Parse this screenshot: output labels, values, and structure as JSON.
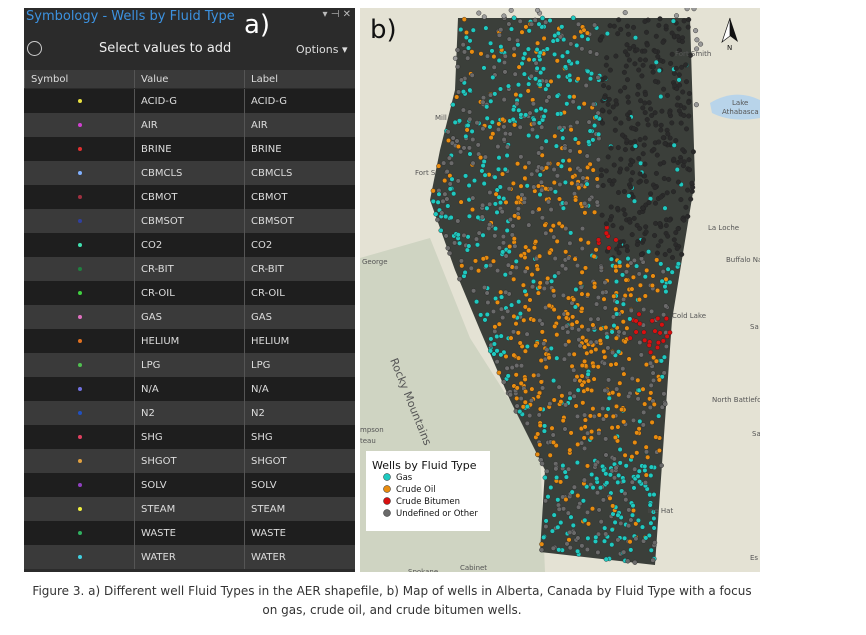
{
  "panel": {
    "title": "Symbology - Wells by Fluid Type",
    "label": "a)",
    "subheader": "Select values to add",
    "options": "Options",
    "columns": [
      "Symbol",
      "Value",
      "Label"
    ],
    "rows": [
      {
        "color": "#e8e040",
        "value": "ACID-G",
        "label": "ACID-G"
      },
      {
        "color": "#d040d0",
        "value": "AIR",
        "label": "AIR"
      },
      {
        "color": "#e03030",
        "value": "BRINE",
        "label": "BRINE"
      },
      {
        "color": "#80b0ff",
        "value": "CBMCLS",
        "label": "CBMCLS"
      },
      {
        "color": "#a03040",
        "value": "CBMOT",
        "label": "CBMOT"
      },
      {
        "color": "#3040a0",
        "value": "CBMSOT",
        "label": "CBMSOT"
      },
      {
        "color": "#40e0b0",
        "value": "CO2",
        "label": "CO2"
      },
      {
        "color": "#208040",
        "value": "CR-BIT",
        "label": "CR-BIT"
      },
      {
        "color": "#40d040",
        "value": "CR-OIL",
        "label": "CR-OIL"
      },
      {
        "color": "#e070c0",
        "value": "GAS",
        "label": "GAS"
      },
      {
        "color": "#e07020",
        "value": "HELIUM",
        "label": "HELIUM"
      },
      {
        "color": "#50c050",
        "value": "LPG",
        "label": "LPG"
      },
      {
        "color": "#7070e0",
        "value": "N/A",
        "label": "N/A"
      },
      {
        "color": "#2050c0",
        "value": "N2",
        "label": "N2"
      },
      {
        "color": "#e04060",
        "value": "SHG",
        "label": "SHG"
      },
      {
        "color": "#e0a040",
        "value": "SHGOT",
        "label": "SHGOT"
      },
      {
        "color": "#9040c0",
        "value": "SOLV",
        "label": "SOLV"
      },
      {
        "color": "#f0f040",
        "value": "STEAM",
        "label": "STEAM"
      },
      {
        "color": "#30b060",
        "value": "WASTE",
        "label": "WASTE"
      },
      {
        "color": "#40d0e0",
        "value": "WATER",
        "label": "WATER"
      }
    ]
  },
  "map": {
    "label": "b)",
    "north": "N",
    "places": [
      "Fort Smith",
      "Lake",
      "Athabasca",
      "Mill",
      "Fort S",
      "La Loche",
      "Buffalo Na",
      "George",
      "Rocky Mountains",
      "Cold Lake",
      "Sa",
      "North Battlefo",
      "mpson",
      "teau",
      "Sa",
      "ine Hat",
      "Cabinet",
      "Spokane",
      "Es"
    ],
    "legend": {
      "title": "Wells by Fluid Type",
      "items": [
        {
          "name": "Gas",
          "color": "#1fc9c0"
        },
        {
          "name": "Crude Oil",
          "color": "#e88c10"
        },
        {
          "name": "Crude Bitumen",
          "color": "#d81010"
        },
        {
          "name": "Undefined or Other",
          "color": "#6a6a6a"
        }
      ]
    }
  },
  "caption": "Figure 3. a) Different well Fluid Types in the AER shapefile, b) Map of wells in Alberta, Canada by Fluid Type with a focus on gas, crude oil, and crude bitumen wells."
}
